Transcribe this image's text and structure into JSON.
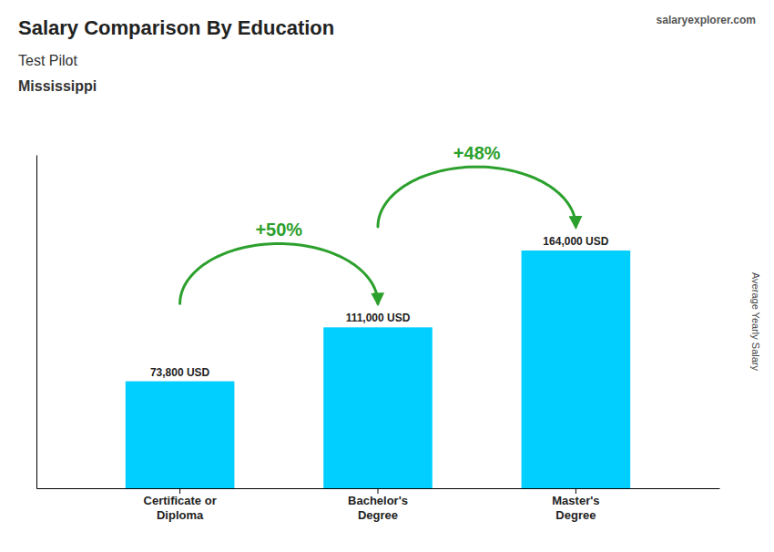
{
  "chart_data": {
    "type": "bar",
    "title": "Salary Comparison By Education",
    "subtitle": "Test Pilot",
    "location": "Mississippi",
    "source": "salaryexplorer.com",
    "y_label": "Average Yearly Salary",
    "categories": [
      "Certificate or\nDiploma",
      "Bachelor's\nDegree",
      "Master's\nDegree"
    ],
    "values": [
      73800,
      111000,
      164000
    ],
    "value_labels": [
      "73,800 USD",
      "111,000 USD",
      "164,000 USD"
    ],
    "data_labels": true,
    "annotations": [
      "+50%",
      "+48%"
    ],
    "color": "#00CFFF",
    "ylim": [
      0,
      230000
    ],
    "tick_labels": "x",
    "grid": false
  }
}
